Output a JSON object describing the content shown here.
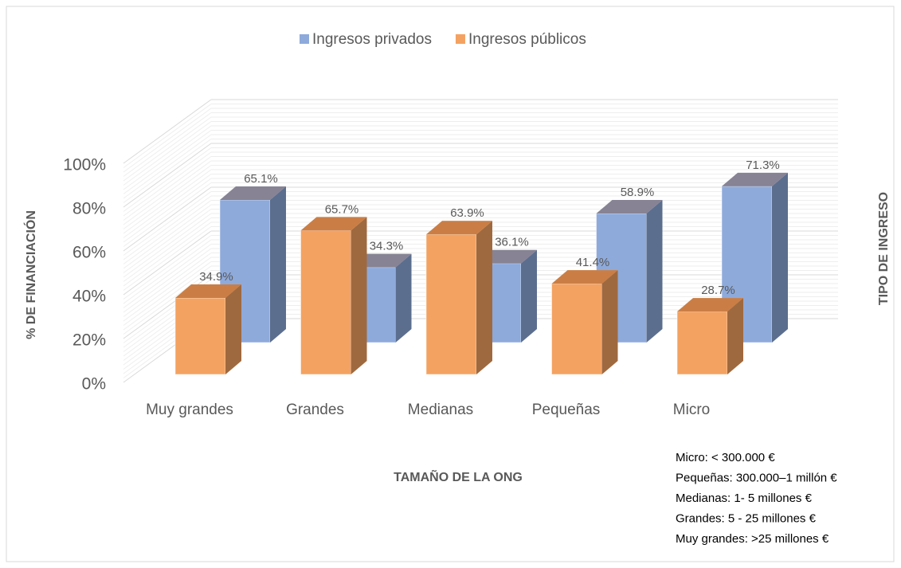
{
  "chart_data": {
    "type": "bar3d",
    "categories": [
      "Muy grandes",
      "Grandes",
      "Medianas",
      "Pequeñas",
      "Micro"
    ],
    "series": [
      {
        "name": "Ingresos privados",
        "color": "#8eaadb",
        "values": [
          65.1,
          34.3,
          36.1,
          58.9,
          71.3
        ],
        "value_labels": [
          "65.1%",
          "34.3%",
          "36.1%",
          "58.9%",
          "71.3%"
        ]
      },
      {
        "name": "Ingresos públicos",
        "color": "#f4a261",
        "values": [
          34.9,
          65.7,
          63.9,
          41.4,
          28.7
        ],
        "value_labels": [
          "34.9%",
          "65.7%",
          "63.9%",
          "41.4%",
          "28.7%"
        ]
      }
    ],
    "ylim": [
      0,
      100
    ],
    "yticks": [
      {
        "value": 0,
        "label": "0%"
      },
      {
        "value": 20,
        "label": "20%"
      },
      {
        "value": 40,
        "label": "40%"
      },
      {
        "value": 60,
        "label": "60%"
      },
      {
        "value": 80,
        "label": "80%"
      },
      {
        "value": 100,
        "label": "100%"
      }
    ],
    "grid": true,
    "legend": "top",
    "ylabel": "% DE FINANCIACIÓN",
    "xlabel": "TAMAÑO DE LA ONG",
    "zlabel": "TIPO DE INGRESO",
    "notes": [
      "Micro: < 300.000 €",
      "Pequeñas: 300.000–1 millón €",
      "Medianas: 1- 5 millones €",
      "Grandes: 5 - 25 millones €",
      "Muy grandes: >25 millones €"
    ]
  }
}
